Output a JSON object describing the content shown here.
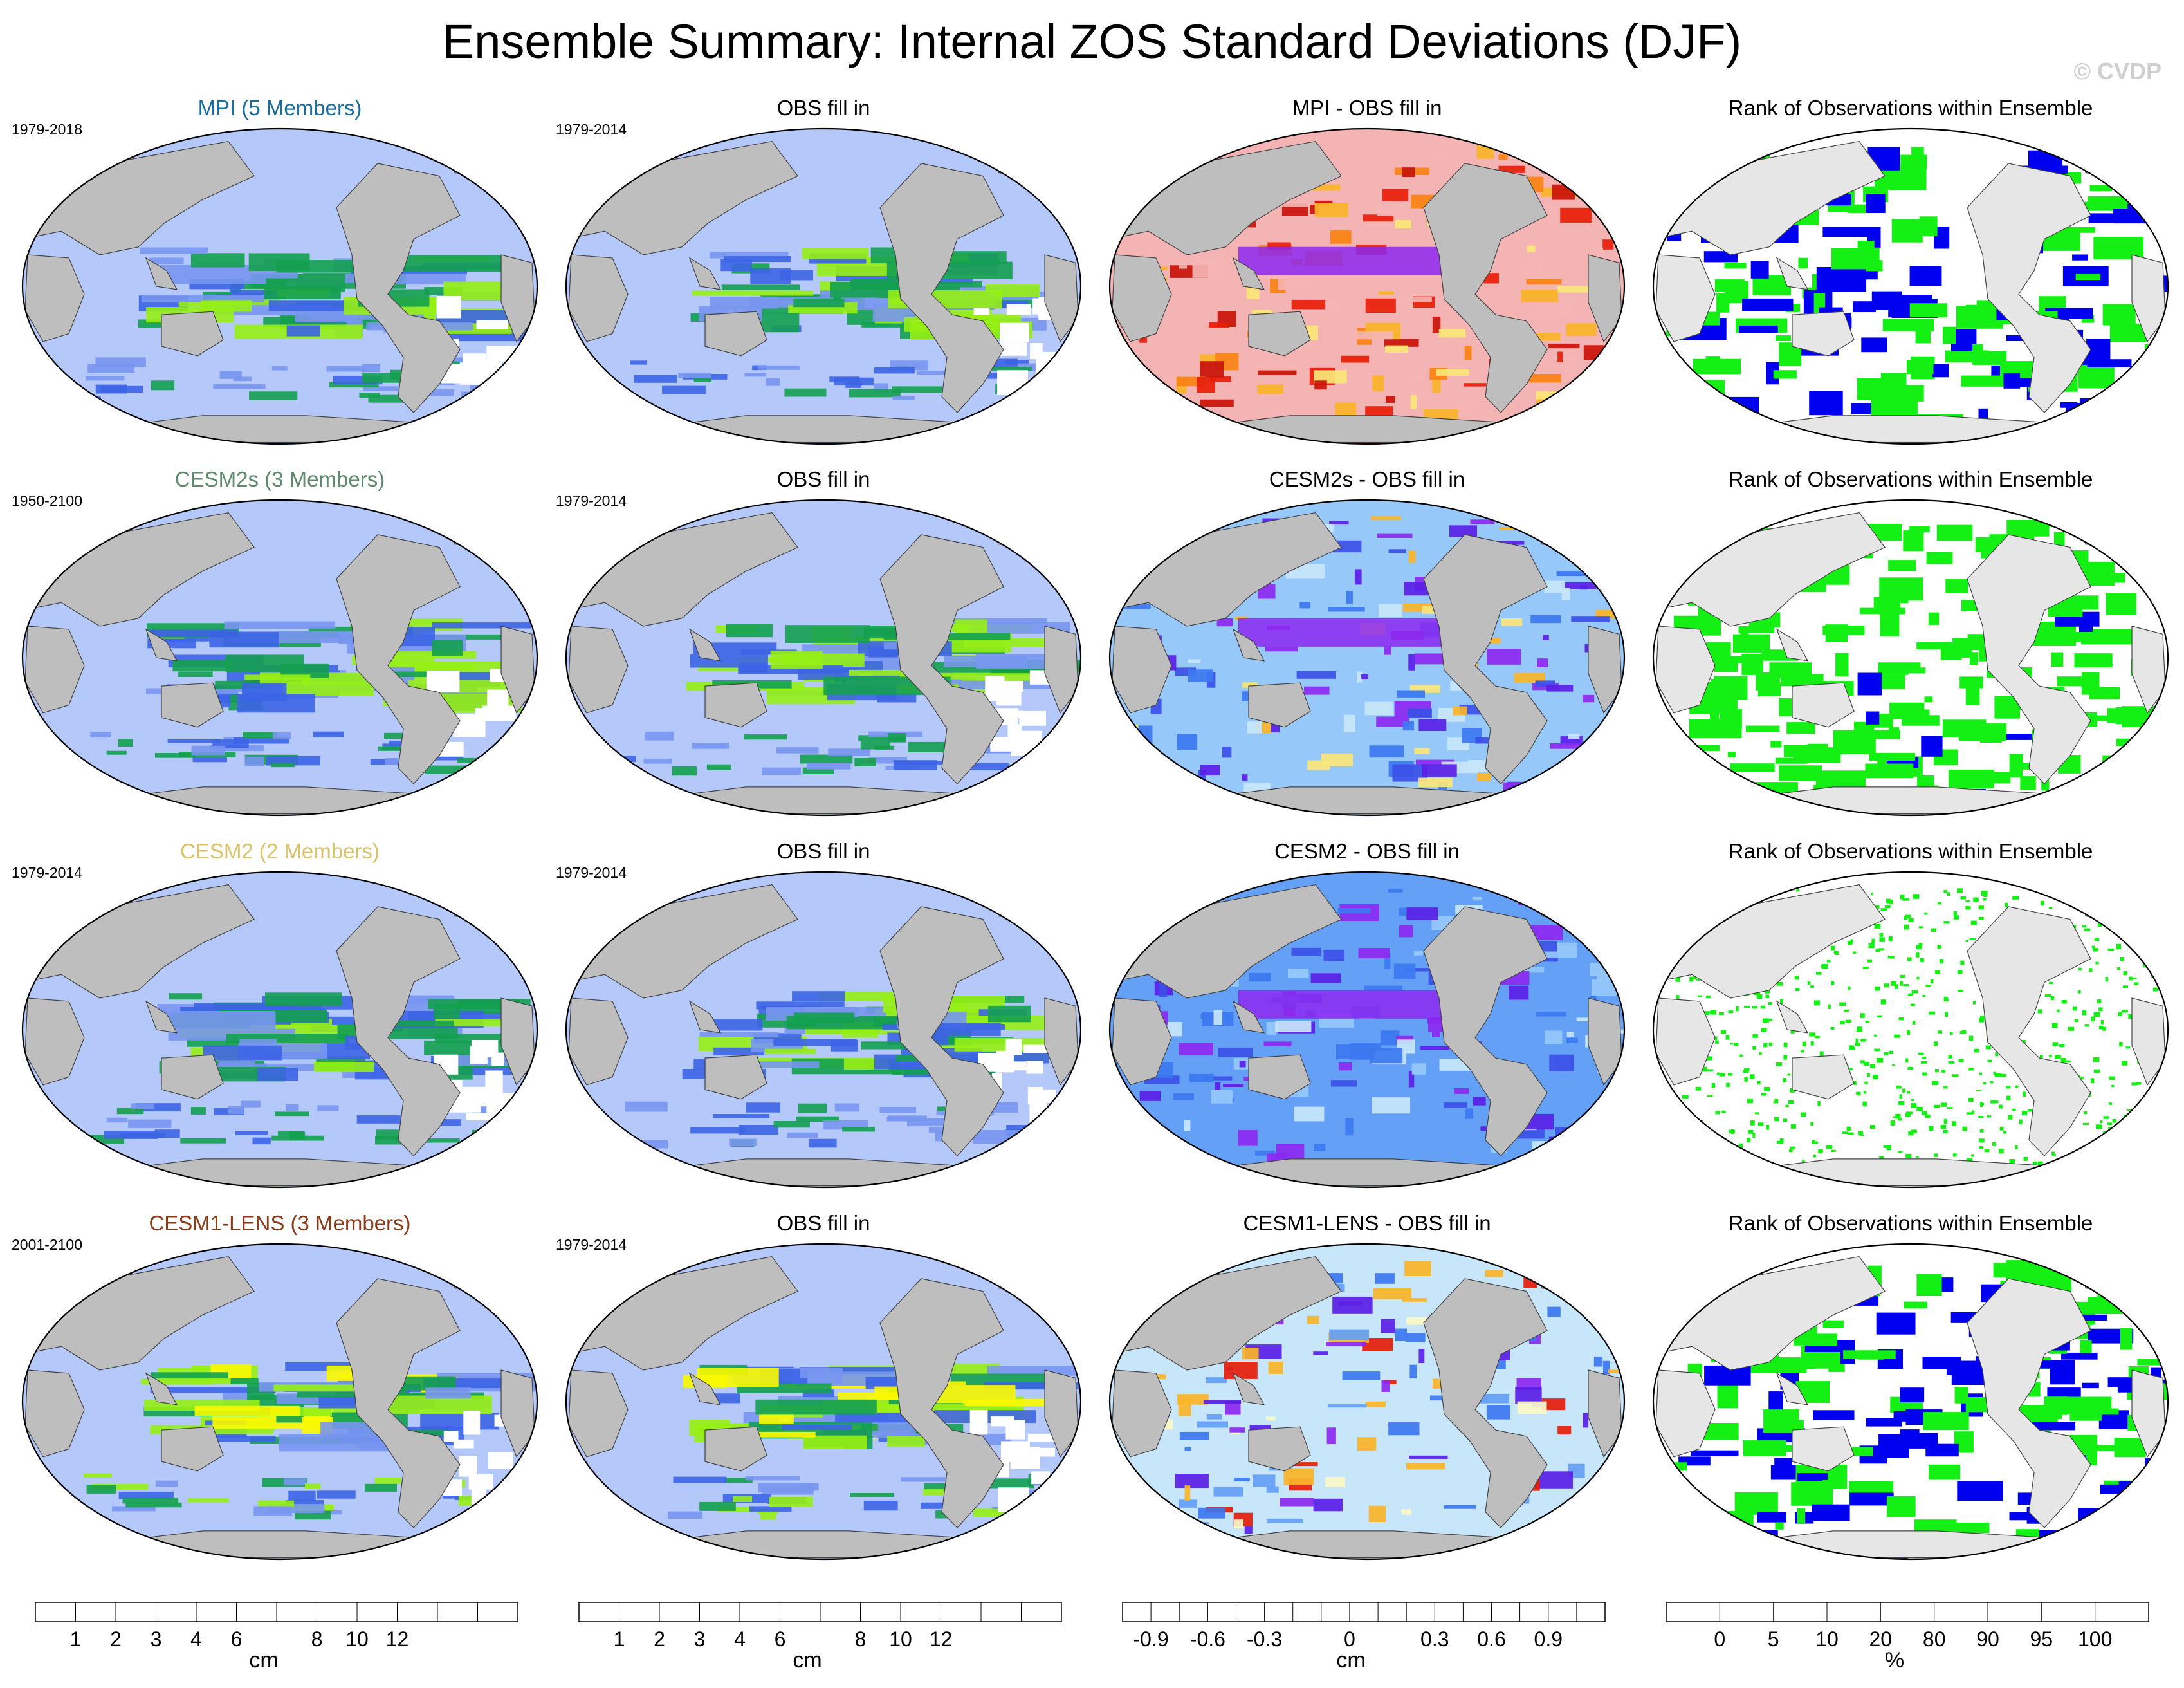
{
  "figure": {
    "title": "Ensemble Summary: Internal ZOS Standard Deviations (DJF)",
    "watermark": "© CVDP"
  },
  "chart_data": {
    "type": "heatmap",
    "rows": [
      {
        "ensemble": "MPI (5 Members)",
        "ensemble_color": "#1a6e9e",
        "ensemble_period": "1979-2018",
        "obs_title": "OBS fill in",
        "obs_period": "1979-2014",
        "diff_title": "MPI - OBS fill in",
        "rank_title": "Rank of Observations within Ensemble",
        "diff_style": "positive",
        "rank_style": "mixed"
      },
      {
        "ensemble": "CESM2s (3 Members)",
        "ensemble_color": "#5e8a6e",
        "ensemble_period": "1950-2100",
        "obs_title": "OBS fill in",
        "obs_period": "1979-2014",
        "diff_title": "CESM2s - OBS fill in",
        "rank_title": "Rank of Observations within Ensemble",
        "diff_style": "mixed-neg",
        "rank_style": "high"
      },
      {
        "ensemble": "CESM2 (2 Members)",
        "ensemble_color": "#d8c36a",
        "ensemble_period": "1979-2014",
        "obs_title": "OBS fill in",
        "obs_period": "1979-2014",
        "diff_title": "CESM2 - OBS fill in",
        "rank_title": "Rank of Observations within Ensemble",
        "diff_style": "negative",
        "rank_style": "sparse"
      },
      {
        "ensemble": "CESM1-LENS (3 Members)",
        "ensemble_color": "#8a3c1a",
        "ensemble_period": "2001-2100",
        "obs_title": "OBS fill in",
        "obs_period": "1979-2014",
        "diff_title": "CESM1-LENS - OBS fill in",
        "rank_title": "Rank of Observations within Ensemble",
        "diff_style": "mixed",
        "rank_style": "mixed"
      }
    ],
    "colorbars": [
      {
        "unit": "cm",
        "labels": [
          "1",
          "2",
          "3",
          "4",
          "6",
          "8",
          "10",
          "12"
        ],
        "colors": [
          "#ffffff",
          "#b4c8fa",
          "#7896f0",
          "#3c64e6",
          "#0a50f0",
          "#14a050",
          "#2dc83c",
          "#96f014",
          "#fafa00",
          "#fac800",
          "#fa9600",
          "#fa2800"
        ]
      },
      {
        "unit": "cm",
        "labels": [
          "1",
          "2",
          "3",
          "4",
          "6",
          "8",
          "10",
          "12"
        ],
        "colors": [
          "#ffffff",
          "#b4c8fa",
          "#7896f0",
          "#3c64e6",
          "#0a50f0",
          "#14a050",
          "#2dc83c",
          "#96f014",
          "#fafa00",
          "#fac800",
          "#fa9600",
          "#fa2800"
        ]
      },
      {
        "unit": "cm",
        "labels": [
          "-0.9",
          "-0.6",
          "-0.3",
          "0",
          "0.3",
          "0.6",
          "0.9"
        ],
        "colors": [
          "#8c28f0",
          "#5a1ee6",
          "#1e1ee6",
          "#3c50e6",
          "#3c78f0",
          "#64a0f5",
          "#96c8fa",
          "#c8e6fa",
          "#fafac8",
          "#fae678",
          "#fab428",
          "#fa8214",
          "#f0500a",
          "#e61e0a",
          "#c8140a",
          "#d25050",
          "#f5b4b4"
        ]
      },
      {
        "unit": "%",
        "labels": [
          "0",
          "5",
          "10",
          "20",
          "80",
          "90",
          "95",
          "100"
        ],
        "colors": [
          "#0000f0",
          "#6464f0",
          "#b4b4f5",
          "#e6e6fa",
          "#ffffff",
          "#e6fae6",
          "#b4f5b4",
          "#78f078",
          "#14f014"
        ]
      }
    ],
    "legend": "bottom"
  }
}
